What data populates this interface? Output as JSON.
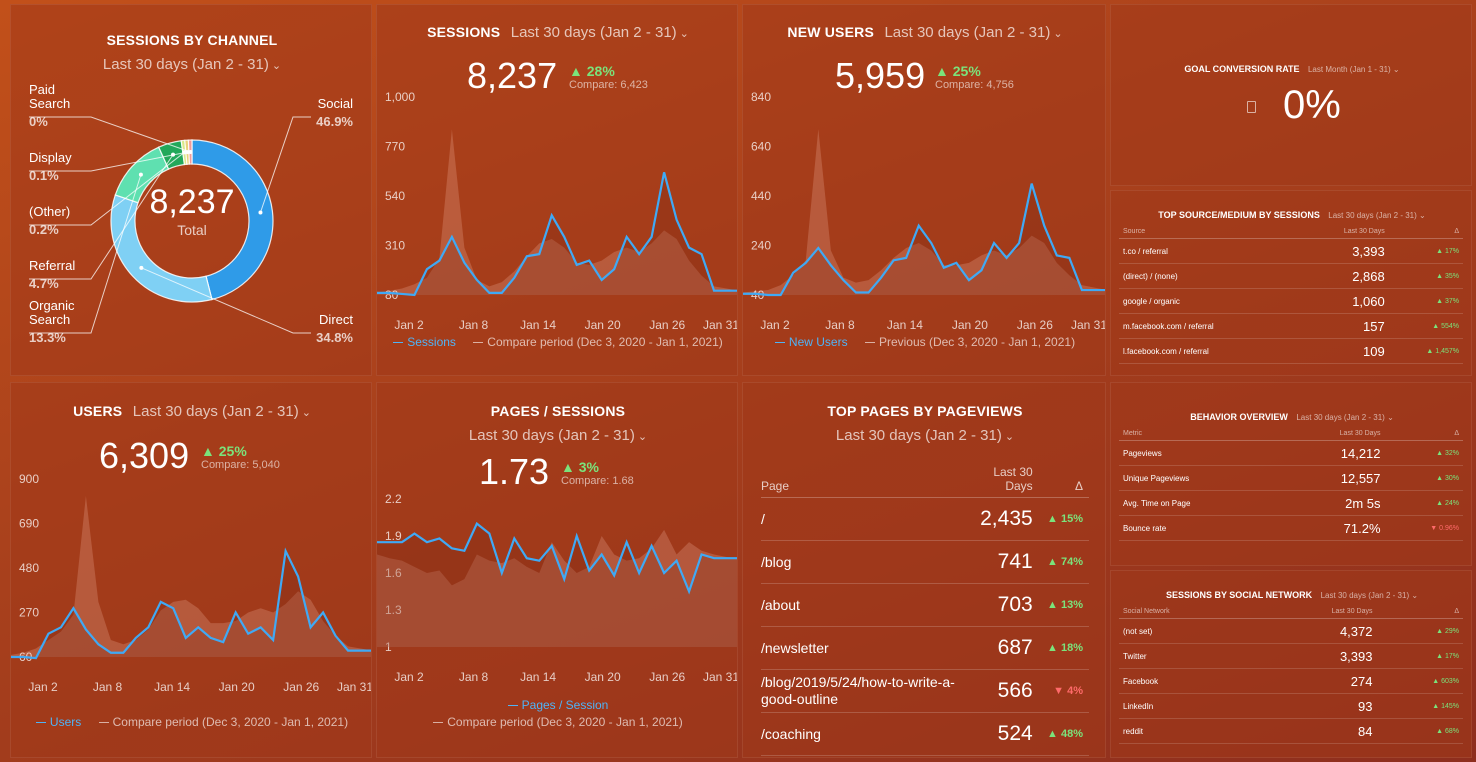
{
  "sessions_by_channel": {
    "title": "SESSIONS BY CHANNEL",
    "period": "Last 30 days (Jan 2 - 31)",
    "total_value": "8,237",
    "total_label": "Total",
    "slices": [
      {
        "name": "Paid Search",
        "line1": "Paid",
        "line2": "Search",
        "pct": "0%",
        "color": "#f29a9a"
      },
      {
        "name": "Display",
        "line1": "Display",
        "line2": "",
        "pct": "0.1%",
        "color": "#e8d27a"
      },
      {
        "name": "(Other)",
        "line1": "(Other)",
        "line2": "",
        "pct": "0.2%",
        "color": "#d9e88a"
      },
      {
        "name": "Referral",
        "line1": "Referral",
        "line2": "",
        "pct": "4.7%",
        "color": "#22a85a"
      },
      {
        "name": "Organic Search",
        "line1": "Organic",
        "line2": "Search",
        "pct": "13.3%",
        "color": "#5fe0b0"
      },
      {
        "name": "Direct",
        "line1": "Direct",
        "line2": "",
        "pct": "34.8%",
        "color": "#7fd0f4"
      },
      {
        "name": "Social",
        "line1": "Social",
        "line2": "",
        "pct": "46.9%",
        "color": "#2f9be8"
      }
    ]
  },
  "sessions": {
    "title": "SESSIONS",
    "period": "Last 30 days (Jan 2 - 31)",
    "value": "8,237",
    "delta": "▲ 28%",
    "compare": "Compare: 6,423",
    "legend_main": "Sessions",
    "legend_compare": "Compare period (Dec 3, 2020 - Jan 1, 2021)"
  },
  "new_users": {
    "title": "NEW USERS",
    "period": "Last 30 days (Jan 2 - 31)",
    "value": "5,959",
    "delta": "▲ 25%",
    "compare": "Compare: 4,756",
    "legend_main": "New Users",
    "legend_compare": "Previous (Dec 3, 2020 - Jan 1, 2021)"
  },
  "goal_conversion": {
    "title": "GOAL CONVERSION RATE",
    "period": "Last Month (Jan 1 - 31)",
    "value": "0%"
  },
  "top_source": {
    "title": "TOP SOURCE/MEDIUM BY SESSIONS",
    "period": "Last 30 days (Jan 2 - 31)",
    "col_source": "Source",
    "col_days": "Last 30 Days",
    "col_delta": "Δ",
    "rows": [
      {
        "name": "t.co / referral",
        "value": "3,393",
        "delta": "▲ 17%"
      },
      {
        "name": "(direct) / (none)",
        "value": "2,868",
        "delta": "▲ 35%"
      },
      {
        "name": "google / organic",
        "value": "1,060",
        "delta": "▲ 37%"
      },
      {
        "name": "m.facebook.com / referral",
        "value": "157",
        "delta": "▲ 554%"
      },
      {
        "name": "l.facebook.com / referral",
        "value": "109",
        "delta": "▲ 1,457%"
      }
    ]
  },
  "users": {
    "title": "USERS",
    "period": "Last 30 days (Jan 2 - 31)",
    "value": "6,309",
    "delta": "▲ 25%",
    "compare": "Compare: 5,040",
    "legend_main": "Users",
    "legend_compare": "Compare period (Dec 3, 2020 - Jan 1, 2021)"
  },
  "pages_sessions": {
    "title": "PAGES / SESSIONS",
    "period": "Last 30 days (Jan 2 - 31)",
    "value": "1.73",
    "delta": "▲ 3%",
    "compare": "Compare: 1.68",
    "legend_main": "Pages / Session",
    "legend_compare": "Compare period (Dec 3, 2020 - Jan 1, 2021)"
  },
  "top_pages": {
    "title": "TOP PAGES BY PAGEVIEWS",
    "period": "Last 30 days (Jan 2 - 31)",
    "col_page": "Page",
    "col_days_1": "Last 30",
    "col_days_2": "Days",
    "col_delta": "Δ",
    "rows": [
      {
        "name": "/",
        "value": "2,435",
        "delta": "▲ 15%",
        "down": false
      },
      {
        "name": "/blog",
        "value": "741",
        "delta": "▲ 74%",
        "down": false
      },
      {
        "name": "/about",
        "value": "703",
        "delta": "▲ 13%",
        "down": false
      },
      {
        "name": "/newsletter",
        "value": "687",
        "delta": "▲ 18%",
        "down": false
      },
      {
        "name": "/blog/2019/5/24/how-to-write-a-good-outline",
        "value": "566",
        "delta": "▼ 4%",
        "down": true
      },
      {
        "name": "/coaching",
        "value": "524",
        "delta": "▲ 48%",
        "down": false
      }
    ]
  },
  "behavior": {
    "title": "BEHAVIOR OVERVIEW",
    "period": "Last 30 days (Jan 2 - 31)",
    "col_metric": "Metric",
    "col_days": "Last 30 Days",
    "col_delta": "Δ",
    "rows": [
      {
        "name": "Pageviews",
        "value": "14,212",
        "delta": "▲ 32%",
        "down": false
      },
      {
        "name": "Unique Pageviews",
        "value": "12,557",
        "delta": "▲ 30%",
        "down": false
      },
      {
        "name": "Avg. Time on Page",
        "value": "2m 5s",
        "delta": "▲ 24%",
        "down": false
      },
      {
        "name": "Bounce rate",
        "value": "71.2%",
        "delta": "▼ 0.96%",
        "down": true
      }
    ]
  },
  "social": {
    "title": "SESSIONS BY SOCIAL NETWORK",
    "period": "Last 30 days (Jan 2 - 31)",
    "col_network": "Social Network",
    "col_days": "Last 30 Days",
    "col_delta": "Δ",
    "rows": [
      {
        "name": "(not set)",
        "value": "4,372",
        "delta": "▲ 29%"
      },
      {
        "name": "Twitter",
        "value": "3,393",
        "delta": "▲ 17%"
      },
      {
        "name": "Facebook",
        "value": "274",
        "delta": "▲ 603%"
      },
      {
        "name": "LinkedIn",
        "value": "93",
        "delta": "▲ 145%"
      },
      {
        "name": "reddit",
        "value": "84",
        "delta": "▲ 68%"
      }
    ]
  },
  "chart_data": [
    {
      "type": "area",
      "id": "sessions",
      "x_ticks": [
        "Jan 2",
        "Jan 8",
        "Jan 14",
        "Jan 20",
        "Jan 26",
        "Jan 31"
      ],
      "y_ticks": [
        "1,000",
        "770",
        "540",
        "310",
        "80"
      ],
      "ylim": [
        80,
        1000
      ],
      "series": [
        {
          "name": "Sessions",
          "values": [
            90,
            90,
            85,
            80,
            200,
            240,
            350,
            230,
            150,
            90,
            90,
            160,
            260,
            270,
            450,
            350,
            220,
            240,
            150,
            200,
            350,
            270,
            350,
            650,
            430,
            300,
            270,
            100,
            100,
            100
          ]
        },
        {
          "name": "Compare period",
          "values": [
            90,
            100,
            110,
            130,
            160,
            250,
            850,
            300,
            150,
            120,
            140,
            190,
            260,
            320,
            340,
            300,
            230,
            220,
            240,
            280,
            300,
            280,
            320,
            380,
            340,
            240,
            170,
            120,
            110,
            100
          ]
        }
      ]
    },
    {
      "type": "area",
      "id": "new_users",
      "x_ticks": [
        "Jan 2",
        "Jan 8",
        "Jan 14",
        "Jan 20",
        "Jan 26",
        "Jan 31"
      ],
      "y_ticks": [
        "840",
        "640",
        "440",
        "240",
        "40"
      ],
      "ylim": [
        40,
        840
      ],
      "series": [
        {
          "name": "New Users",
          "values": [
            45,
            45,
            40,
            40,
            130,
            170,
            230,
            160,
            100,
            50,
            50,
            110,
            180,
            190,
            320,
            250,
            150,
            170,
            100,
            140,
            250,
            190,
            250,
            490,
            320,
            200,
            190,
            60,
            60,
            60
          ]
        },
        {
          "name": "Previous",
          "values": [
            50,
            55,
            60,
            80,
            120,
            180,
            710,
            220,
            110,
            90,
            100,
            140,
            190,
            230,
            250,
            220,
            160,
            160,
            170,
            200,
            220,
            200,
            230,
            280,
            250,
            170,
            120,
            80,
            70,
            60
          ]
        }
      ]
    },
    {
      "type": "area",
      "id": "users",
      "x_ticks": [
        "Jan 2",
        "Jan 8",
        "Jan 14",
        "Jan 20",
        "Jan 26",
        "Jan 31"
      ],
      "y_ticks": [
        "900",
        "690",
        "480",
        "270",
        "60"
      ],
      "ylim": [
        60,
        900
      ],
      "series": [
        {
          "name": "Users",
          "values": [
            60,
            60,
            55,
            170,
            200,
            290,
            190,
            120,
            80,
            80,
            150,
            200,
            320,
            290,
            150,
            200,
            150,
            130,
            270,
            170,
            200,
            140,
            560,
            440,
            200,
            270,
            160,
            90,
            90,
            90
          ]
        },
        {
          "name": "Compare period",
          "values": [
            70,
            80,
            100,
            140,
            180,
            260,
            820,
            320,
            140,
            120,
            140,
            190,
            280,
            320,
            330,
            290,
            220,
            220,
            230,
            270,
            290,
            270,
            310,
            370,
            330,
            230,
            160,
            110,
            100,
            90
          ]
        }
      ]
    },
    {
      "type": "area",
      "id": "pages_sessions",
      "x_ticks": [
        "Jan 2",
        "Jan 8",
        "Jan 14",
        "Jan 20",
        "Jan 26",
        "Jan 31"
      ],
      "y_ticks": [
        "2.2",
        "1.9",
        "1.6",
        "1.3",
        "1"
      ],
      "ylim": [
        1.0,
        2.2
      ],
      "series": [
        {
          "name": "Pages / Session",
          "values": [
            1.85,
            1.85,
            1.85,
            1.92,
            1.85,
            1.88,
            1.8,
            1.78,
            2.0,
            1.92,
            1.6,
            1.88,
            1.72,
            1.7,
            1.82,
            1.55,
            1.9,
            1.62,
            1.75,
            1.58,
            1.85,
            1.6,
            1.82,
            1.6,
            1.7,
            1.45,
            1.75,
            1.72,
            1.72,
            1.72
          ]
        },
        {
          "name": "Compare period",
          "values": [
            1.75,
            1.72,
            1.7,
            1.65,
            1.6,
            1.62,
            1.5,
            1.55,
            1.75,
            1.7,
            1.68,
            1.72,
            1.65,
            1.6,
            1.85,
            1.7,
            1.6,
            1.65,
            1.9,
            1.75,
            1.7,
            1.72,
            1.8,
            1.95,
            1.75,
            1.85,
            1.78,
            1.75,
            1.73,
            1.72
          ]
        }
      ]
    },
    {
      "type": "pie",
      "id": "sessions_by_channel",
      "categories": [
        "Social",
        "Direct",
        "Organic Search",
        "Referral",
        "(Other)",
        "Display",
        "Paid Search"
      ],
      "values": [
        46.9,
        34.8,
        13.3,
        4.7,
        0.2,
        0.1,
        0.0
      ]
    }
  ]
}
